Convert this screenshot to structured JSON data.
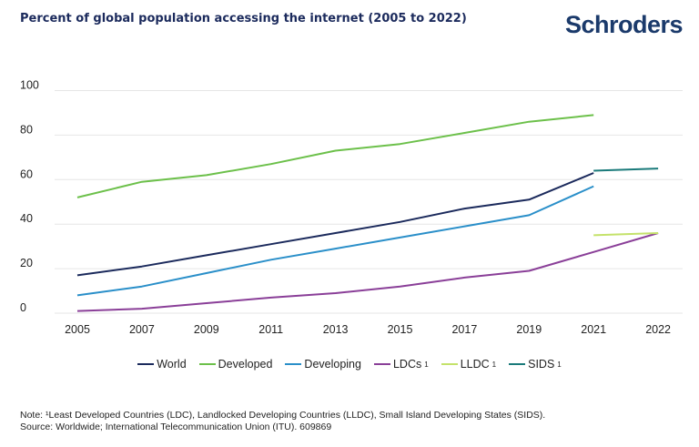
{
  "header": {
    "title": "Percent of global population accessing the internet (2005 to 2022)",
    "logo_text": "Schroders"
  },
  "chart_data": {
    "type": "line",
    "title": "Percent of global population accessing the internet (2005 to 2022)",
    "categories": [
      "2005",
      "2007",
      "2009",
      "2011",
      "2013",
      "2015",
      "2017",
      "2019",
      "2021",
      "2022"
    ],
    "ylim": [
      0,
      100
    ],
    "yticks": [
      0,
      20,
      40,
      60,
      80,
      100
    ],
    "grid": true,
    "legend_position": "bottom",
    "series": [
      {
        "name": "World",
        "label": "World",
        "sup": "",
        "color": "#1b2a5c",
        "values": [
          17,
          21,
          26,
          31,
          36,
          41,
          47,
          51,
          63,
          null
        ]
      },
      {
        "name": "Developed",
        "label": "Developed",
        "sup": "",
        "color": "#6cc04a",
        "values": [
          52,
          59,
          62,
          67,
          73,
          76,
          81,
          86,
          89,
          null
        ]
      },
      {
        "name": "Developing",
        "label": "Developing",
        "sup": "",
        "color": "#2a8fc9",
        "values": [
          8,
          12,
          18,
          24,
          29,
          34,
          39,
          44,
          57,
          null
        ]
      },
      {
        "name": "LDCs¹",
        "label": "LDCs",
        "sup": "1",
        "color": "#8a3f98",
        "values": [
          1,
          2,
          4.5,
          7,
          9,
          12,
          16,
          19,
          27.5,
          36
        ]
      },
      {
        "name": "LLDC¹",
        "label": "LLDC",
        "sup": "1",
        "color": "#c4e26a",
        "values": [
          null,
          null,
          null,
          null,
          null,
          null,
          null,
          null,
          35,
          36
        ]
      },
      {
        "name": "SIDS¹",
        "label": "SIDS",
        "sup": "1",
        "color": "#1a7a7a",
        "values": [
          null,
          null,
          null,
          null,
          null,
          null,
          null,
          null,
          64,
          65
        ]
      }
    ]
  },
  "footer": {
    "note": "Note: ¹Least Developed Countries (LDC), Landlocked Developing Countries (LLDC), Small Island Developing States (SIDS).",
    "source": "Source: Worldwide; International Telecommunication Union (ITU). 609869"
  }
}
